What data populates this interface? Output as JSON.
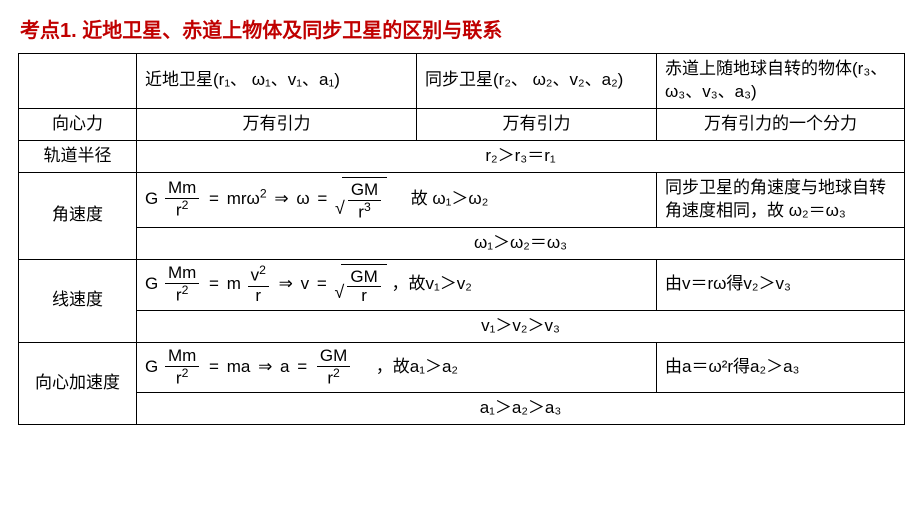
{
  "title": "考点1. 近地卫星、赤道上物体及同步卫星的区别与联系",
  "colors": {
    "title": "#c00000",
    "border": "#000000",
    "text": "#000000",
    "bg": "#ffffff"
  },
  "header": {
    "blank": "",
    "col1": "近地卫星(r₁、 ω₁、v₁、a₁)",
    "col2": "同步卫星(r₂、 ω₂、v₂、a₂)",
    "col3": "赤道上随地球自转的物体(r₃、 ω₃、v₃、a₃)"
  },
  "rows": {
    "force": {
      "label": "向心力",
      "c1": "万有引力",
      "c2": "万有引力",
      "c3": "万有引力的一个分力"
    },
    "radius": {
      "label": "轨道半径",
      "merged": "r₂＞r₃＝r₁"
    },
    "omega": {
      "label": "角速度",
      "left_formula_tail": "故 ω₁＞ω₂",
      "right": "同步卫星的角速度与地球自转角速度相同，故 ω₂＝ω₃",
      "summary": "ω₁＞ω₂＝ω₃"
    },
    "v": {
      "label": "线速度",
      "left_formula_tail": "，故v₁＞v₂",
      "right": "由v＝rω得v₂＞v₃",
      "summary": "v₁＞v₂＞v₃"
    },
    "a": {
      "label": "向心加速度",
      "left_formula_tail": "，故a₁＞a₂",
      "right": "由a＝ω²r得a₂＞a₃",
      "summary": "a₁＞a₂＞a₃"
    }
  },
  "math": {
    "G": "G",
    "Mm": "Mm",
    "r2": "r",
    "r2exp": "2",
    "mrw2": "mr",
    "w": "ω",
    "arrow": "⇒",
    "eq": "=",
    "GM": "GM",
    "r3": "r",
    "r3exp": "3",
    "m": "m",
    "v": "v",
    "vexp": "2",
    "r": "r",
    "ma": "ma",
    "a": "a"
  }
}
